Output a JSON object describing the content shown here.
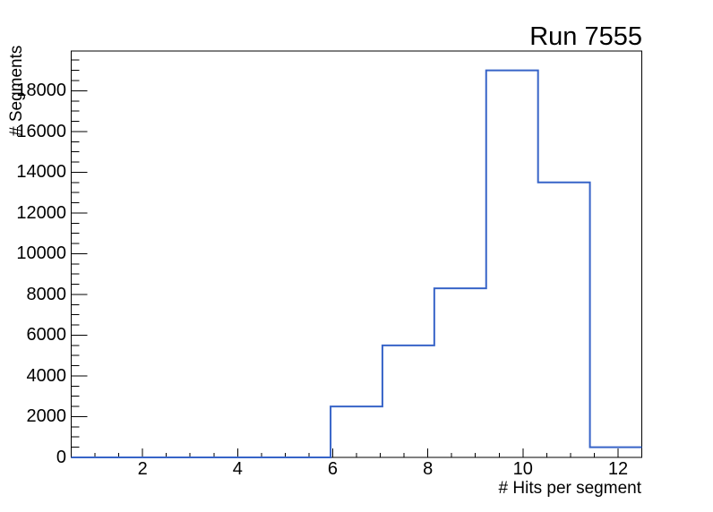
{
  "chart_data": {
    "type": "bar",
    "subtype": "step-histogram-outline",
    "title": "Run 7555",
    "xlabel": "# Hits per segment",
    "ylabel": "# Segments",
    "xlim": [
      0.5,
      12.5
    ],
    "ylim": [
      0,
      19950
    ],
    "n_bins": 11,
    "bin_edges": [
      0.5,
      1.591,
      2.682,
      3.773,
      4.864,
      5.955,
      7.045,
      8.136,
      9.227,
      10.318,
      11.409,
      12.5
    ],
    "values": [
      0,
      0,
      0,
      0,
      0,
      2500,
      5500,
      8300,
      19000,
      13500,
      500
    ],
    "x_major_ticks": [
      2,
      4,
      6,
      8,
      10,
      12
    ],
    "x_tick_labels": [
      "2",
      "4",
      "6",
      "8",
      "10",
      "12"
    ],
    "x_minor_tick_step": 0.5,
    "y_major_tick_step": 2000,
    "y_minor_tick_step": 500,
    "y_tick_labels": [
      "0",
      "2000",
      "4000",
      "6000",
      "8000",
      "10000",
      "12000",
      "14000",
      "16000",
      "18000"
    ],
    "grid": false,
    "legend": null,
    "colors": {
      "line": "#3764c8",
      "axis": "#000000",
      "background": "#ffffff",
      "text": "#000000"
    }
  }
}
